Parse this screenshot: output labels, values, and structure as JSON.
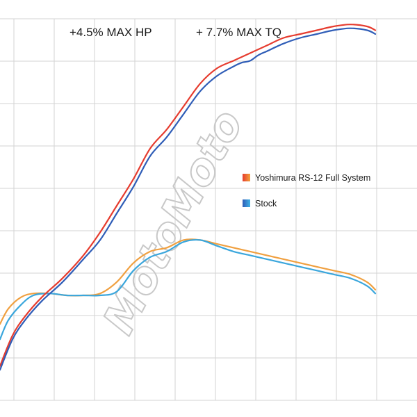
{
  "chart_data": {
    "type": "line",
    "title": "",
    "headlines": [
      "+4.5% MAX HP",
      "+ 7.7% MAX TQ"
    ],
    "xlabel": "",
    "ylabel": "",
    "xlim": [
      0,
      100
    ],
    "ylim": [
      0,
      100
    ],
    "grid": true,
    "legend": {
      "placement": "center-right"
    },
    "watermark": "MotoMoto",
    "series": [
      {
        "name": "Yoshimura RS-12 Full System",
        "measure": "horsepower",
        "color": "#e63c2f",
        "x": [
          0,
          3,
          6,
          10,
          15,
          20,
          24,
          28,
          32,
          36,
          40,
          44,
          48,
          52,
          56,
          58,
          60,
          62,
          64,
          68,
          72,
          76,
          80,
          84,
          88,
          90
        ],
        "values": [
          9,
          17,
          22,
          27,
          32,
          38,
          44,
          51,
          58,
          66,
          71,
          77,
          83,
          87,
          89,
          90,
          91,
          92,
          93,
          95,
          96,
          97,
          98,
          98.5,
          98,
          97
        ]
      },
      {
        "name": "Stock",
        "measure": "horsepower",
        "color": "#2f5db7",
        "x": [
          0,
          3,
          6,
          10,
          15,
          20,
          24,
          28,
          32,
          36,
          40,
          44,
          48,
          52,
          56,
          58,
          60,
          62,
          64,
          68,
          72,
          76,
          80,
          84,
          88,
          90
        ],
        "values": [
          8,
          16,
          21,
          26,
          31,
          37,
          42,
          49,
          56,
          64,
          69,
          75,
          81,
          85,
          87.5,
          88.5,
          89,
          90.5,
          91.5,
          93.5,
          95,
          96,
          97,
          97.5,
          97,
          96
        ]
      },
      {
        "name": "Yoshimura RS-12 Full System",
        "measure": "torque",
        "color": "#f0a040",
        "x": [
          0,
          2,
          5,
          8,
          12,
          16,
          20,
          24,
          28,
          32,
          36,
          40,
          44,
          48,
          52,
          56,
          60,
          64,
          68,
          72,
          76,
          80,
          84,
          88,
          90
        ],
        "values": [
          20,
          24,
          27,
          28,
          28,
          27.5,
          27.5,
          28,
          31,
          36,
          39,
          40,
          42,
          42,
          41,
          40,
          39,
          38,
          37,
          36,
          35,
          34,
          33,
          31,
          29
        ]
      },
      {
        "name": "Stock",
        "measure": "torque",
        "color": "#3aa6dc",
        "x": [
          0,
          2,
          5,
          8,
          12,
          16,
          20,
          24,
          28,
          32,
          36,
          40,
          44,
          48,
          52,
          56,
          60,
          64,
          68,
          72,
          76,
          80,
          84,
          88,
          90
        ],
        "values": [
          16,
          21,
          25,
          27.5,
          28,
          27.5,
          27.5,
          27.5,
          28.5,
          34,
          37.5,
          39,
          41.5,
          42,
          40.5,
          39,
          38,
          37,
          36,
          35,
          34,
          33,
          32,
          30,
          28
        ]
      }
    ]
  }
}
